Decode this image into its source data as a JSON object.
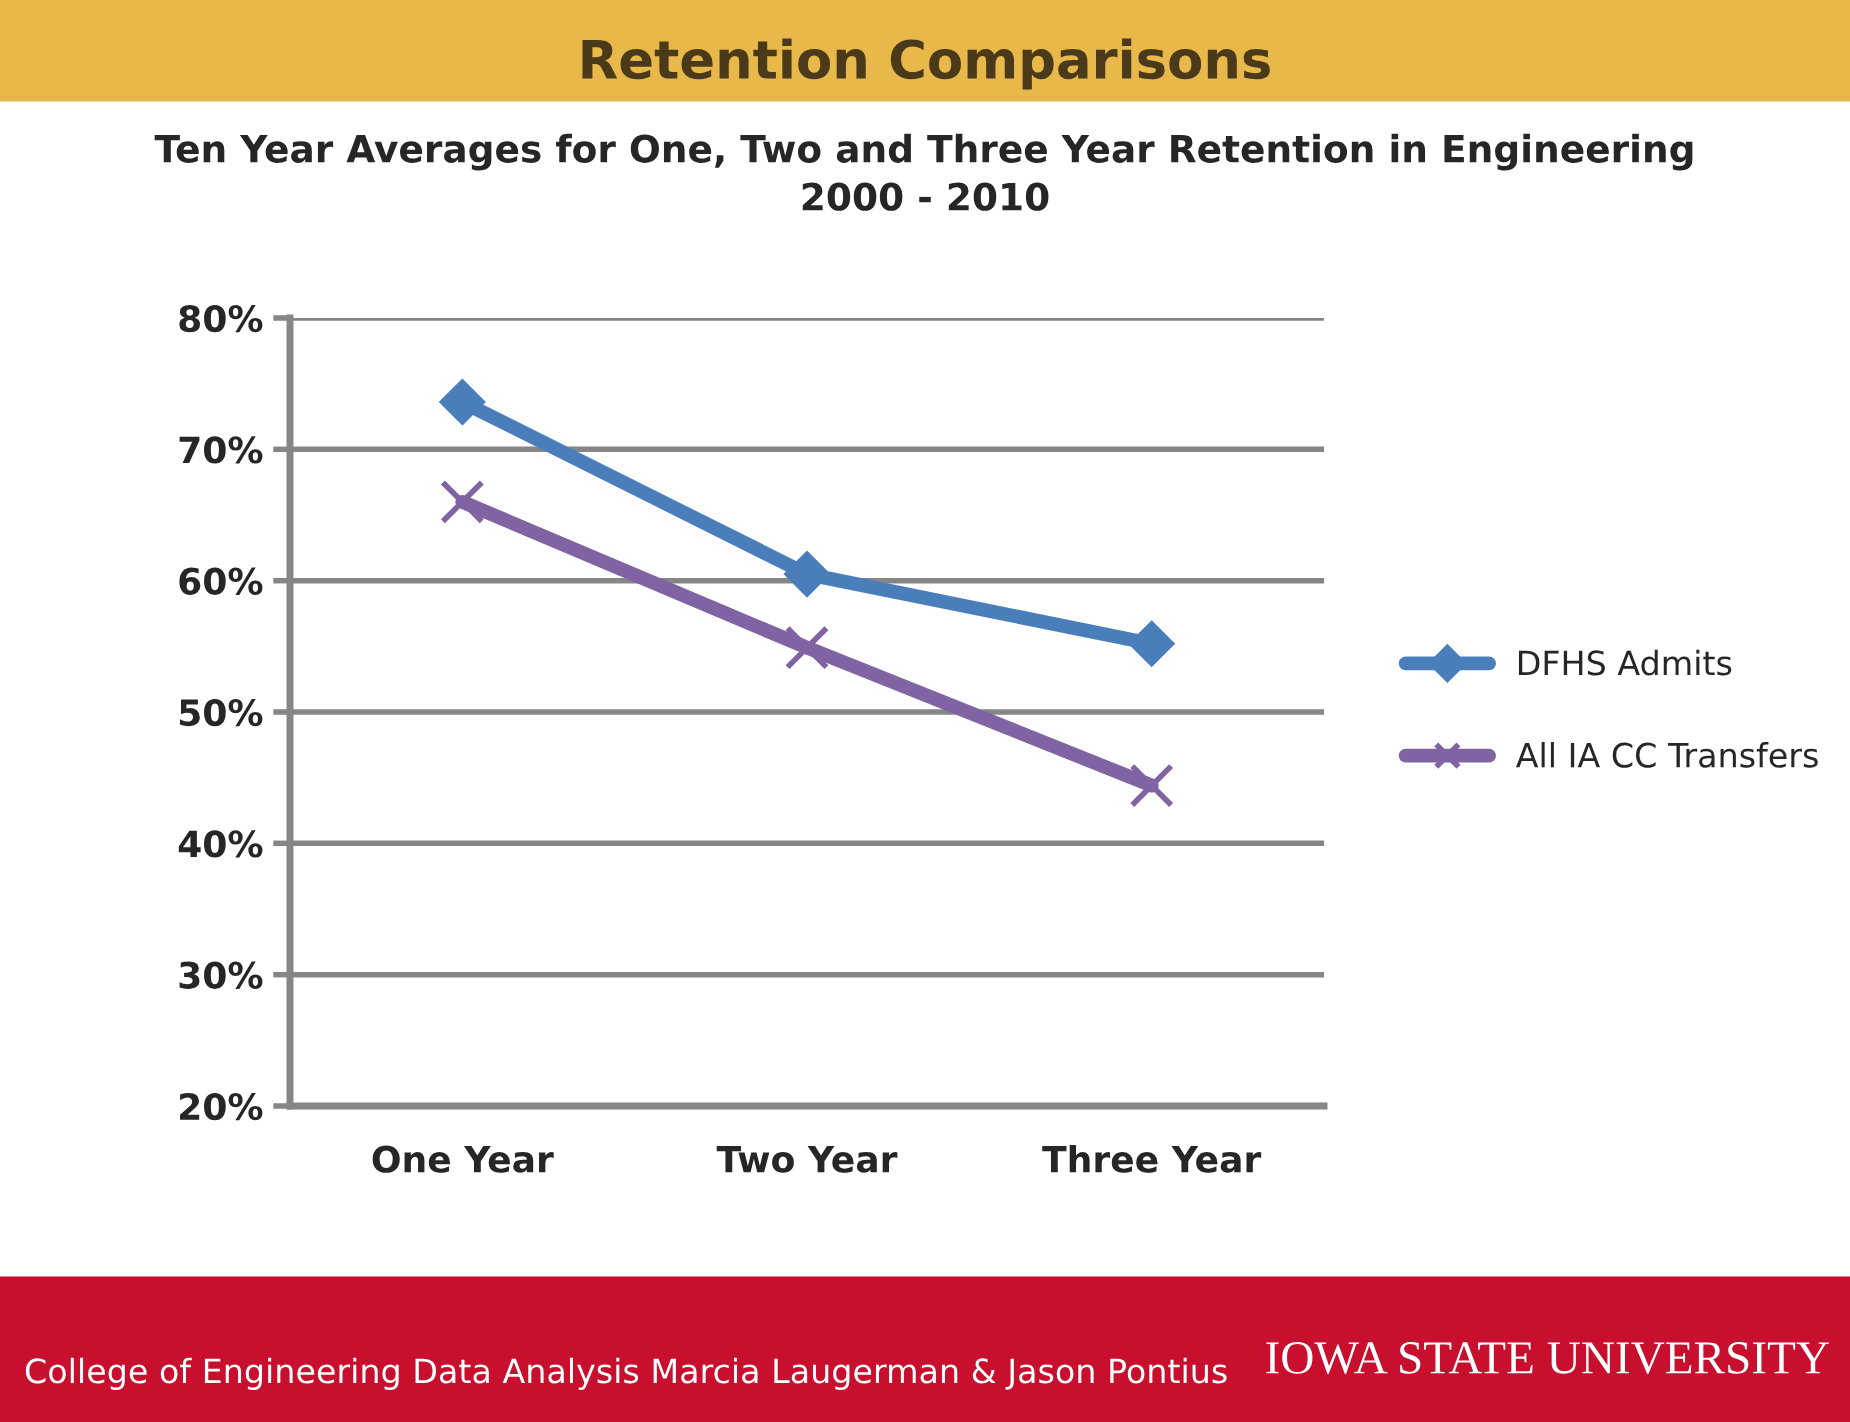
{
  "chart_data": {
    "type": "line",
    "title": "Retention Comparisons",
    "subtitle": "Ten Year Averages for One, Two and Three Year Retention in Engineering\n2000 - 2010",
    "categories": [
      "One Year",
      "Two Year",
      "Three Year"
    ],
    "series": [
      {
        "name": "DFHS Admits",
        "color": "#4a7ebb",
        "marker": "diamond",
        "values": [
          73.6,
          60.5,
          55.2
        ]
      },
      {
        "name": "All IA CC Transfers",
        "color": "#7f63a2",
        "marker": "cross",
        "values": [
          66.0,
          54.9,
          44.4
        ]
      }
    ],
    "ylim": [
      20,
      80
    ],
    "yticks": [
      {
        "value": 20,
        "label": "20%"
      },
      {
        "value": 30,
        "label": "30%"
      },
      {
        "value": 40,
        "label": "40%"
      },
      {
        "value": 50,
        "label": "50%"
      },
      {
        "value": 60,
        "label": "60%"
      },
      {
        "value": 70,
        "label": "70%"
      },
      {
        "value": 80,
        "label": "80%"
      }
    ],
    "grid": "y",
    "legend": "right",
    "line_style": "solid",
    "annotations": [
      "College of Engineering Data Analysis Marcia Laugerman & Jason Pontius",
      "IOWA STATE UNIVERSITY"
    ]
  }
}
